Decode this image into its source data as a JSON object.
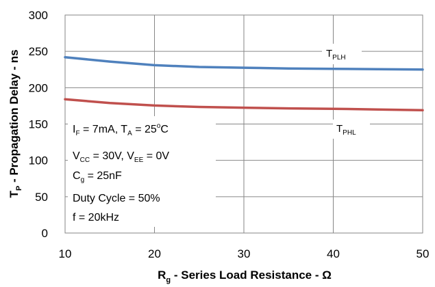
{
  "chart_data": {
    "type": "line",
    "x_ticks": [
      10,
      20,
      30,
      40,
      50
    ],
    "y_ticks": [
      0,
      50,
      100,
      150,
      200,
      250,
      300
    ],
    "xlim": [
      10,
      50
    ],
    "ylim": [
      0,
      300
    ],
    "grid": true,
    "xlabel": {
      "main": "R",
      "sub": "g",
      "rest": " - Series Load Resistance - Ω"
    },
    "ylabel": {
      "main": "T",
      "sub": "P",
      "rest": " - Propagation Delay - ns"
    },
    "series": [
      {
        "name_main": "T",
        "name_sub": "PLH",
        "color": "#4f81bd",
        "x": [
          10,
          15,
          20,
          25,
          30,
          35,
          40,
          45,
          50
        ],
        "y": [
          242,
          236,
          231,
          228.5,
          227.5,
          226.5,
          226,
          225.5,
          225
        ]
      },
      {
        "name_main": "T",
        "name_sub": "PHL",
        "color": "#c0504d",
        "x": [
          10,
          15,
          20,
          25,
          30,
          35,
          40,
          45,
          50
        ],
        "y": [
          184,
          179,
          175.5,
          173.5,
          172.5,
          171.5,
          171,
          170,
          169
        ]
      }
    ],
    "annotation": {
      "line1": {
        "a": "I",
        "a_sub": "F",
        "b": " = 7mA, T",
        "b_sub": "A",
        "c": " = 25",
        "c_sup": "o",
        "d": "C"
      },
      "line2": {
        "a": "V",
        "a_sub": "CC",
        "b": " = 30V, V",
        "b_sub": "EE",
        "c": " = 0V"
      },
      "line3": {
        "a": "C",
        "a_sub": "g",
        "b": " = 25nF"
      },
      "line4": "Duty Cycle = 50%",
      "line5": "f = 20kHz"
    }
  }
}
